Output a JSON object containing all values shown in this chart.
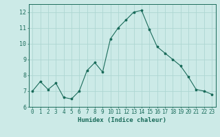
{
  "x": [
    0,
    1,
    2,
    3,
    4,
    5,
    6,
    7,
    8,
    9,
    10,
    11,
    12,
    13,
    14,
    15,
    16,
    17,
    18,
    19,
    20,
    21,
    22,
    23
  ],
  "y": [
    7.0,
    7.6,
    7.1,
    7.5,
    6.6,
    6.5,
    7.0,
    8.3,
    8.8,
    8.2,
    10.3,
    11.0,
    11.5,
    12.0,
    12.1,
    10.9,
    9.8,
    9.4,
    9.0,
    8.6,
    7.9,
    7.1,
    7.0,
    6.8
  ],
  "xlim": [
    -0.5,
    23.5
  ],
  "ylim": [
    6,
    12.5
  ],
  "yticks": [
    6,
    7,
    8,
    9,
    10,
    11,
    12
  ],
  "xticks": [
    0,
    1,
    2,
    3,
    4,
    5,
    6,
    7,
    8,
    9,
    10,
    11,
    12,
    13,
    14,
    15,
    16,
    17,
    18,
    19,
    20,
    21,
    22,
    23
  ],
  "xlabel": "Humidex (Indice chaleur)",
  "line_color": "#1a6b5a",
  "marker": "*",
  "bg_color": "#cceae7",
  "grid_color": "#aed6d2",
  "axis_color": "#1a6b5a",
  "tick_color": "#1a6b5a",
  "label_color": "#1a6b5a",
  "xlabel_fontsize": 6.5,
  "tick_fontsize": 5.5,
  "ytick_fontsize": 6.0
}
